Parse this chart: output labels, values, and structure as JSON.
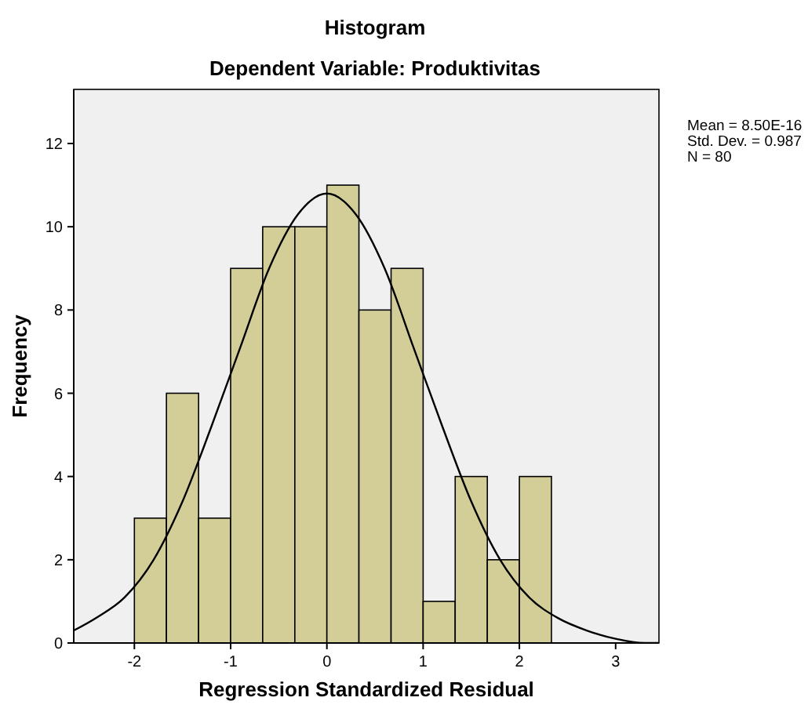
{
  "chart_data": {
    "type": "histogram",
    "title": "Histogram",
    "subtitle": "Dependent Variable: Produktivitas",
    "xlabel": "Regression Standardized Residual",
    "ylabel": "Frequency",
    "bins": [
      -2,
      -1.667,
      -1.333,
      -1,
      -0.667,
      -0.333,
      0,
      0.333,
      0.667,
      1,
      1.333,
      1.667,
      2,
      2.333
    ],
    "values": [
      3,
      6,
      3,
      9,
      10,
      10,
      11,
      8,
      9,
      1,
      4,
      2,
      4
    ],
    "color": "#d3ce97",
    "series": [
      {
        "type": "line",
        "color": "#000000",
        "x": [
          -2.63,
          -2.4,
          -2.1,
          -1.8,
          -1.5,
          -1.2,
          -0.9,
          -0.6,
          -0.3,
          0,
          0.3,
          0.6,
          0.9,
          1.2,
          1.5,
          1.8,
          2.1,
          2.4,
          2.7,
          3.0,
          3.3,
          3.45
        ],
        "values": [
          0.3,
          0.6,
          1.1,
          2.0,
          3.4,
          5.2,
          7.1,
          9.0,
          10.3,
          10.8,
          10.3,
          9.0,
          7.1,
          5.2,
          3.4,
          2.0,
          1.1,
          0.6,
          0.3,
          0.1,
          0.0,
          0.0
        ]
      }
    ],
    "xlim": [
      -2.63,
      3.45
    ],
    "ylim": [
      0,
      13.3
    ],
    "xticks": [
      -2,
      -1,
      0,
      1,
      2,
      3
    ],
    "yticks": [
      0,
      2,
      4,
      6,
      8,
      10,
      12
    ],
    "annotations": [
      "Mean = 8.50E-16",
      "Std. Dev. = 0.987",
      "N = 80"
    ],
    "grid": false
  }
}
